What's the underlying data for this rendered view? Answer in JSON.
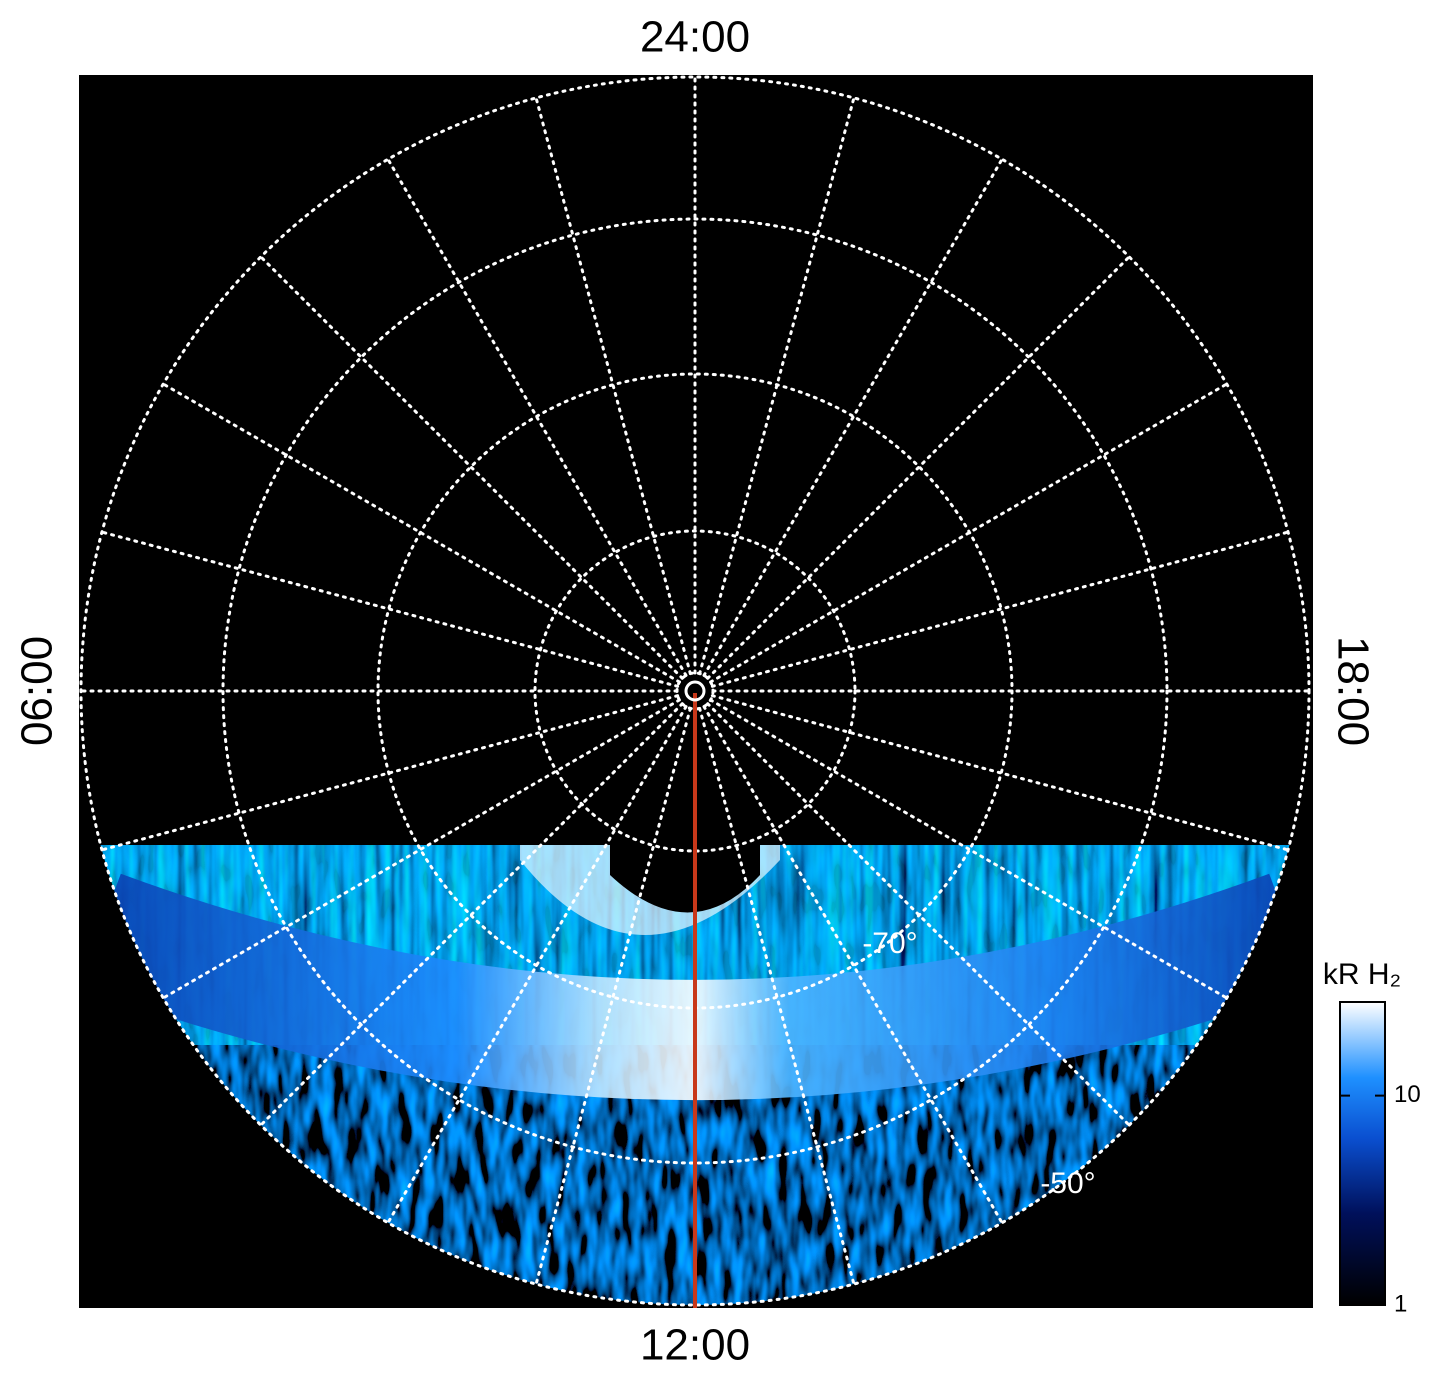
{
  "chart_data": {
    "type": "polar-map",
    "time_labels": {
      "top": "24:00",
      "bottom": "12:00",
      "left": "06:00",
      "right": "18:00"
    },
    "latitude_labels": [
      "-70°",
      "-50°"
    ],
    "colorbar": {
      "title": "kR H₂",
      "scale": "log",
      "lim": [
        1,
        28
      ],
      "ticks": [
        1,
        10
      ]
    }
  }
}
